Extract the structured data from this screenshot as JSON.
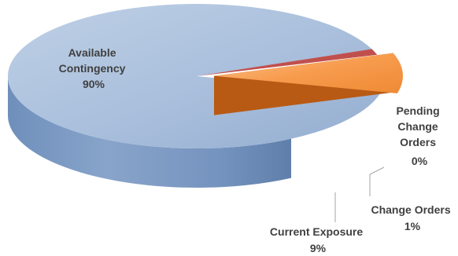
{
  "chart_data": {
    "type": "pie",
    "style": "3d",
    "categories": [
      "Available Contingency",
      "Pending Change Orders",
      "Change Orders",
      "Current Exposure"
    ],
    "values": [
      90,
      0,
      1,
      9
    ],
    "value_labels": [
      "90%",
      "0%",
      "1%",
      "9%"
    ],
    "exploded": "Current Exposure",
    "legend": "none",
    "colors": {
      "Available Contingency": "#a9bedb",
      "Pending Change Orders": "#c0504d",
      "Change Orders": "#c0504d",
      "Current Exposure": "#f79646"
    }
  }
}
